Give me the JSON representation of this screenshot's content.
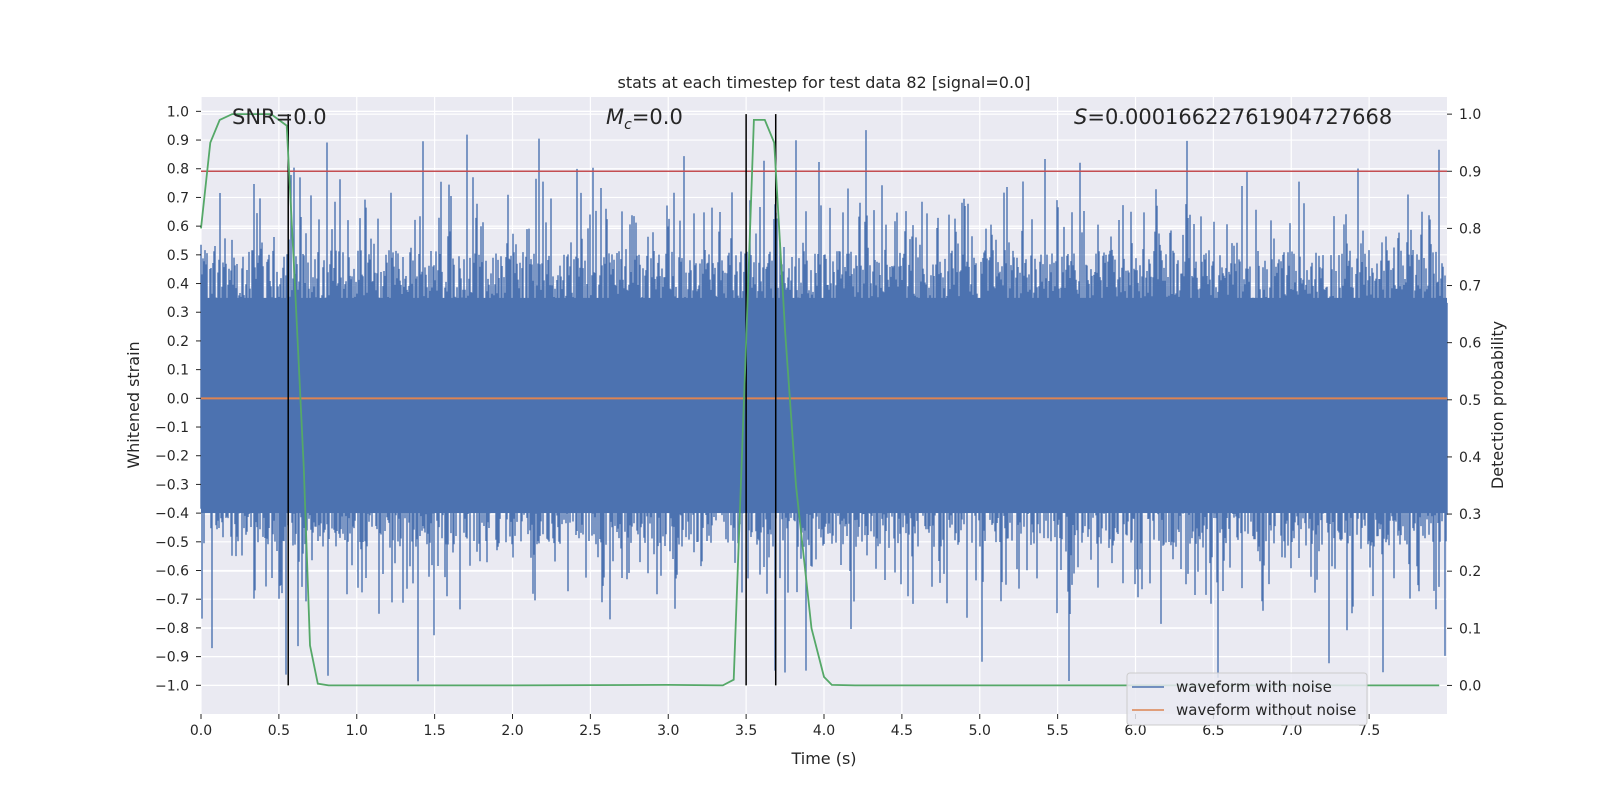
{
  "chart_data": {
    "type": "line",
    "title": "stats at each timestep for test data 82 [signal=0.0]",
    "xlabel": "Time (s)",
    "ylabel": "Whitened strain",
    "y2label": "Detection probability",
    "xlim": [
      0.0,
      8.0
    ],
    "ylim": [
      -1.1,
      1.05
    ],
    "y2lim": [
      -0.05,
      1.03
    ],
    "xticks": [
      "0.0",
      "0.5",
      "1.0",
      "1.5",
      "2.0",
      "2.5",
      "3.0",
      "3.5",
      "4.0",
      "4.5",
      "5.0",
      "5.5",
      "6.0",
      "6.5",
      "7.0",
      "7.5"
    ],
    "yticks": [
      "1.0",
      "0.9",
      "0.8",
      "0.7",
      "0.6",
      "0.5",
      "0.4",
      "0.3",
      "0.2",
      "0.1",
      "0.0",
      "−0.1",
      "−0.2",
      "−0.3",
      "−0.4",
      "−0.5",
      "−0.6",
      "−0.7",
      "−0.8",
      "−0.9",
      "−1.0"
    ],
    "y2ticks": [
      "1.0",
      "0.9",
      "0.8",
      "0.7",
      "0.6",
      "0.5",
      "0.4",
      "0.3",
      "0.2",
      "0.1",
      "0.0"
    ],
    "annotations": {
      "snr": "SNR=0.0",
      "mc_symbol": "M",
      "mc_subscript": "c",
      "mc_value": "=0.0",
      "s_symbol": "S",
      "s_value": "=0.00016622761904727668"
    },
    "series": [
      {
        "name": "waveform with noise",
        "color": "#4c72b0",
        "kind": "noise",
        "typical_abs_amplitude": 0.45,
        "max_value": 0.95,
        "min_value": -1.0
      },
      {
        "name": "waveform without noise",
        "color": "#dd8452",
        "values_constant": 0.0
      }
    ],
    "detection_probability": {
      "color": "#55a868",
      "x": [
        0.0,
        0.06,
        0.12,
        0.2,
        0.45,
        0.55,
        0.6,
        0.66,
        0.7,
        0.75,
        0.82,
        1.0,
        2.0,
        3.0,
        3.35,
        3.42,
        3.5,
        3.55,
        3.62,
        3.68,
        3.75,
        3.82,
        3.92,
        4.0,
        4.05,
        4.2,
        5.0,
        6.0,
        7.0,
        7.95
      ],
      "y": [
        0.8,
        0.95,
        0.99,
        1.0,
        1.0,
        0.98,
        0.72,
        0.38,
        0.07,
        0.003,
        0.0,
        0.0,
        0.0,
        0.001,
        0.0,
        0.01,
        0.6,
        0.99,
        0.99,
        0.95,
        0.62,
        0.35,
        0.1,
        0.015,
        0.001,
        0.0,
        0.0,
        0.0,
        0.0,
        0.0
      ]
    },
    "threshold_line": {
      "color": "#c44e52",
      "value": 0.9
    },
    "vertical_markers": [
      0.56,
      3.5,
      3.69
    ],
    "legend_location": "lower-right"
  }
}
